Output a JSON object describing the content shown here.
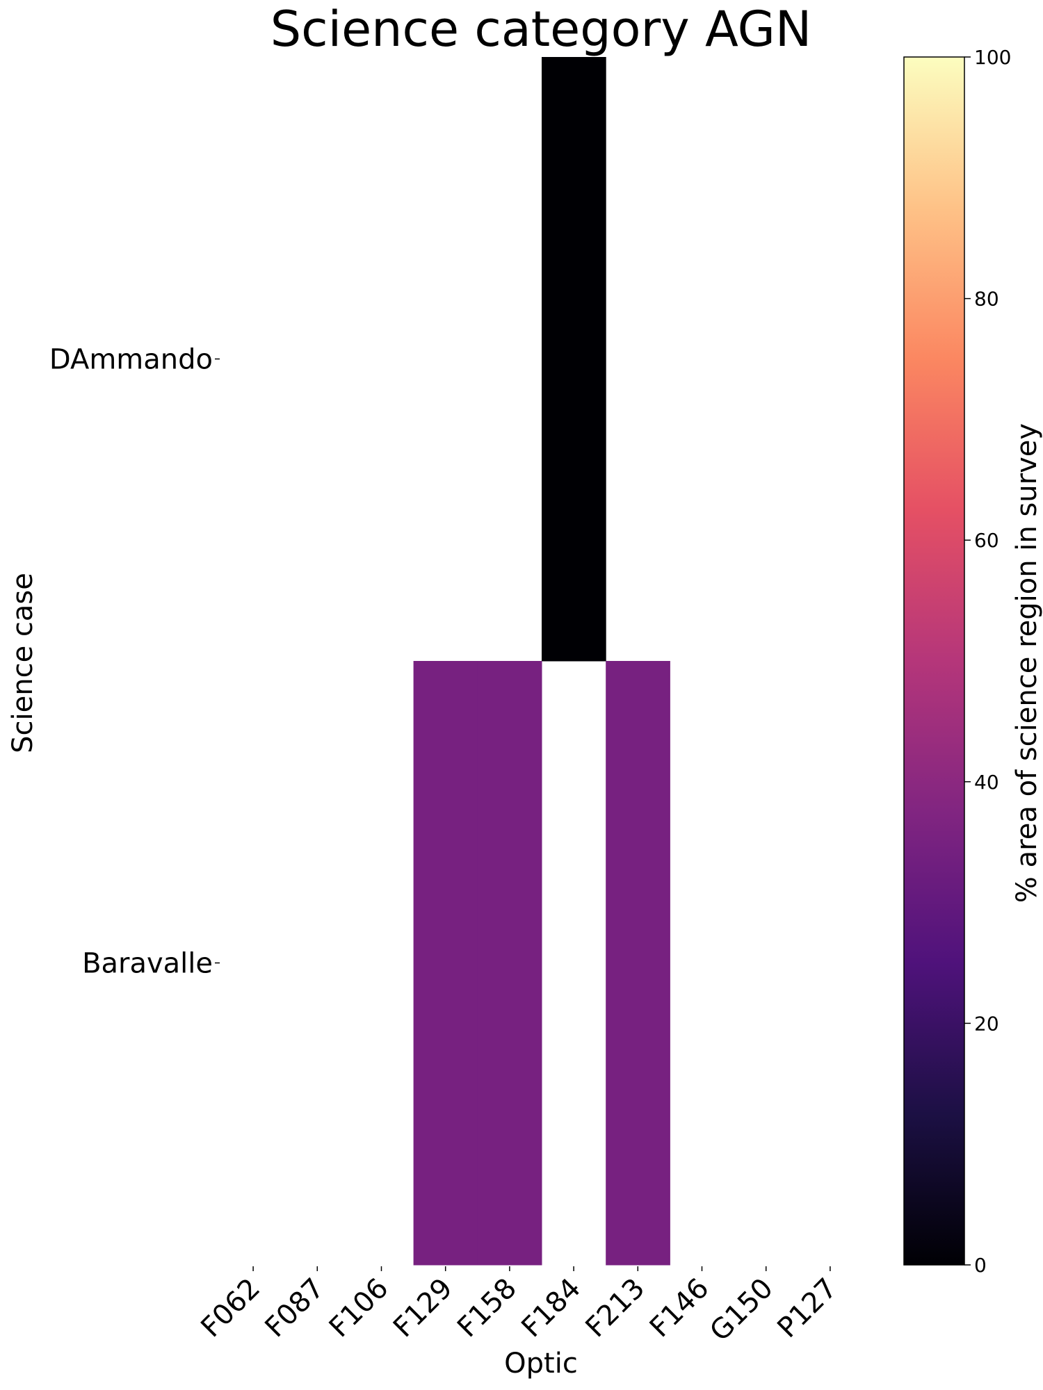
{
  "chart_data": {
    "type": "heatmap",
    "title": "Science category AGN",
    "xlabel": "Optic",
    "ylabel": "Science case",
    "x_categories": [
      "F062",
      "F087",
      "F106",
      "F129",
      "F158",
      "F184",
      "F213",
      "F146",
      "G150",
      "P127"
    ],
    "y_categories": [
      "DAmmando",
      "Baravalle"
    ],
    "values": [
      [
        null,
        null,
        null,
        null,
        null,
        0,
        null,
        null,
        null,
        null
      ],
      [
        null,
        null,
        null,
        35,
        35,
        null,
        35,
        null,
        null,
        null
      ]
    ],
    "colorbar": {
      "label": "% area of science region in survey",
      "range": [
        0,
        100
      ],
      "ticks": [
        0,
        20,
        40,
        60,
        80,
        100
      ],
      "colormap": "magma",
      "colormap_stops": [
        "#000004",
        "#1c1044",
        "#4f127b",
        "#812581",
        "#b5367a",
        "#e55064",
        "#fb8761",
        "#fec287",
        "#fcfdbf"
      ]
    },
    "missing_color": "#ffffff"
  }
}
